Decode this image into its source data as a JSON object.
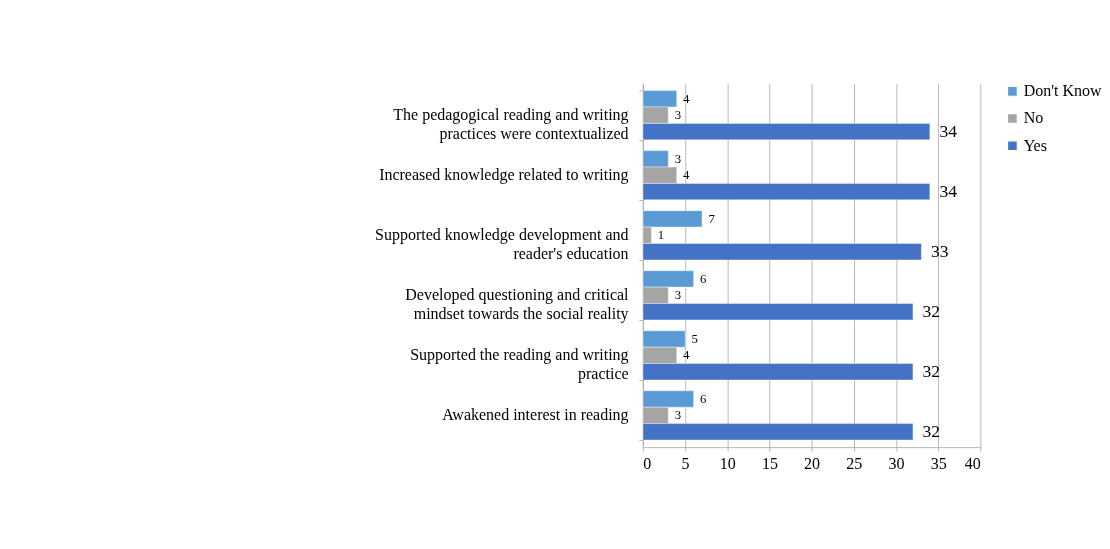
{
  "chart_data": {
    "type": "bar",
    "orientation": "horizontal",
    "categories": [
      "The pedagogical reading and writing practices were contextualized",
      "Increased knowledge related to writing",
      "Supported knowledge development and reader's education",
      "Developed questioning and critical mindset towards the social reality",
      "Supported the reading and writing practice",
      "Awakened interest in reading"
    ],
    "series": [
      {
        "name": "Don't Know",
        "color": "#5b9bd5",
        "values": [
          4,
          3,
          7,
          6,
          5,
          6
        ]
      },
      {
        "name": "No",
        "color": "#a5a5a5",
        "values": [
          3,
          4,
          1,
          3,
          4,
          3
        ]
      },
      {
        "name": "Yes",
        "color": "#4472c4",
        "values": [
          34,
          34,
          33,
          32,
          32,
          32
        ]
      }
    ],
    "xlim": [
      0,
      40
    ],
    "xticks": [
      0,
      5,
      10,
      15,
      20,
      25,
      30,
      35,
      40
    ],
    "grid": "x",
    "legend": "right",
    "data_labels": true
  }
}
